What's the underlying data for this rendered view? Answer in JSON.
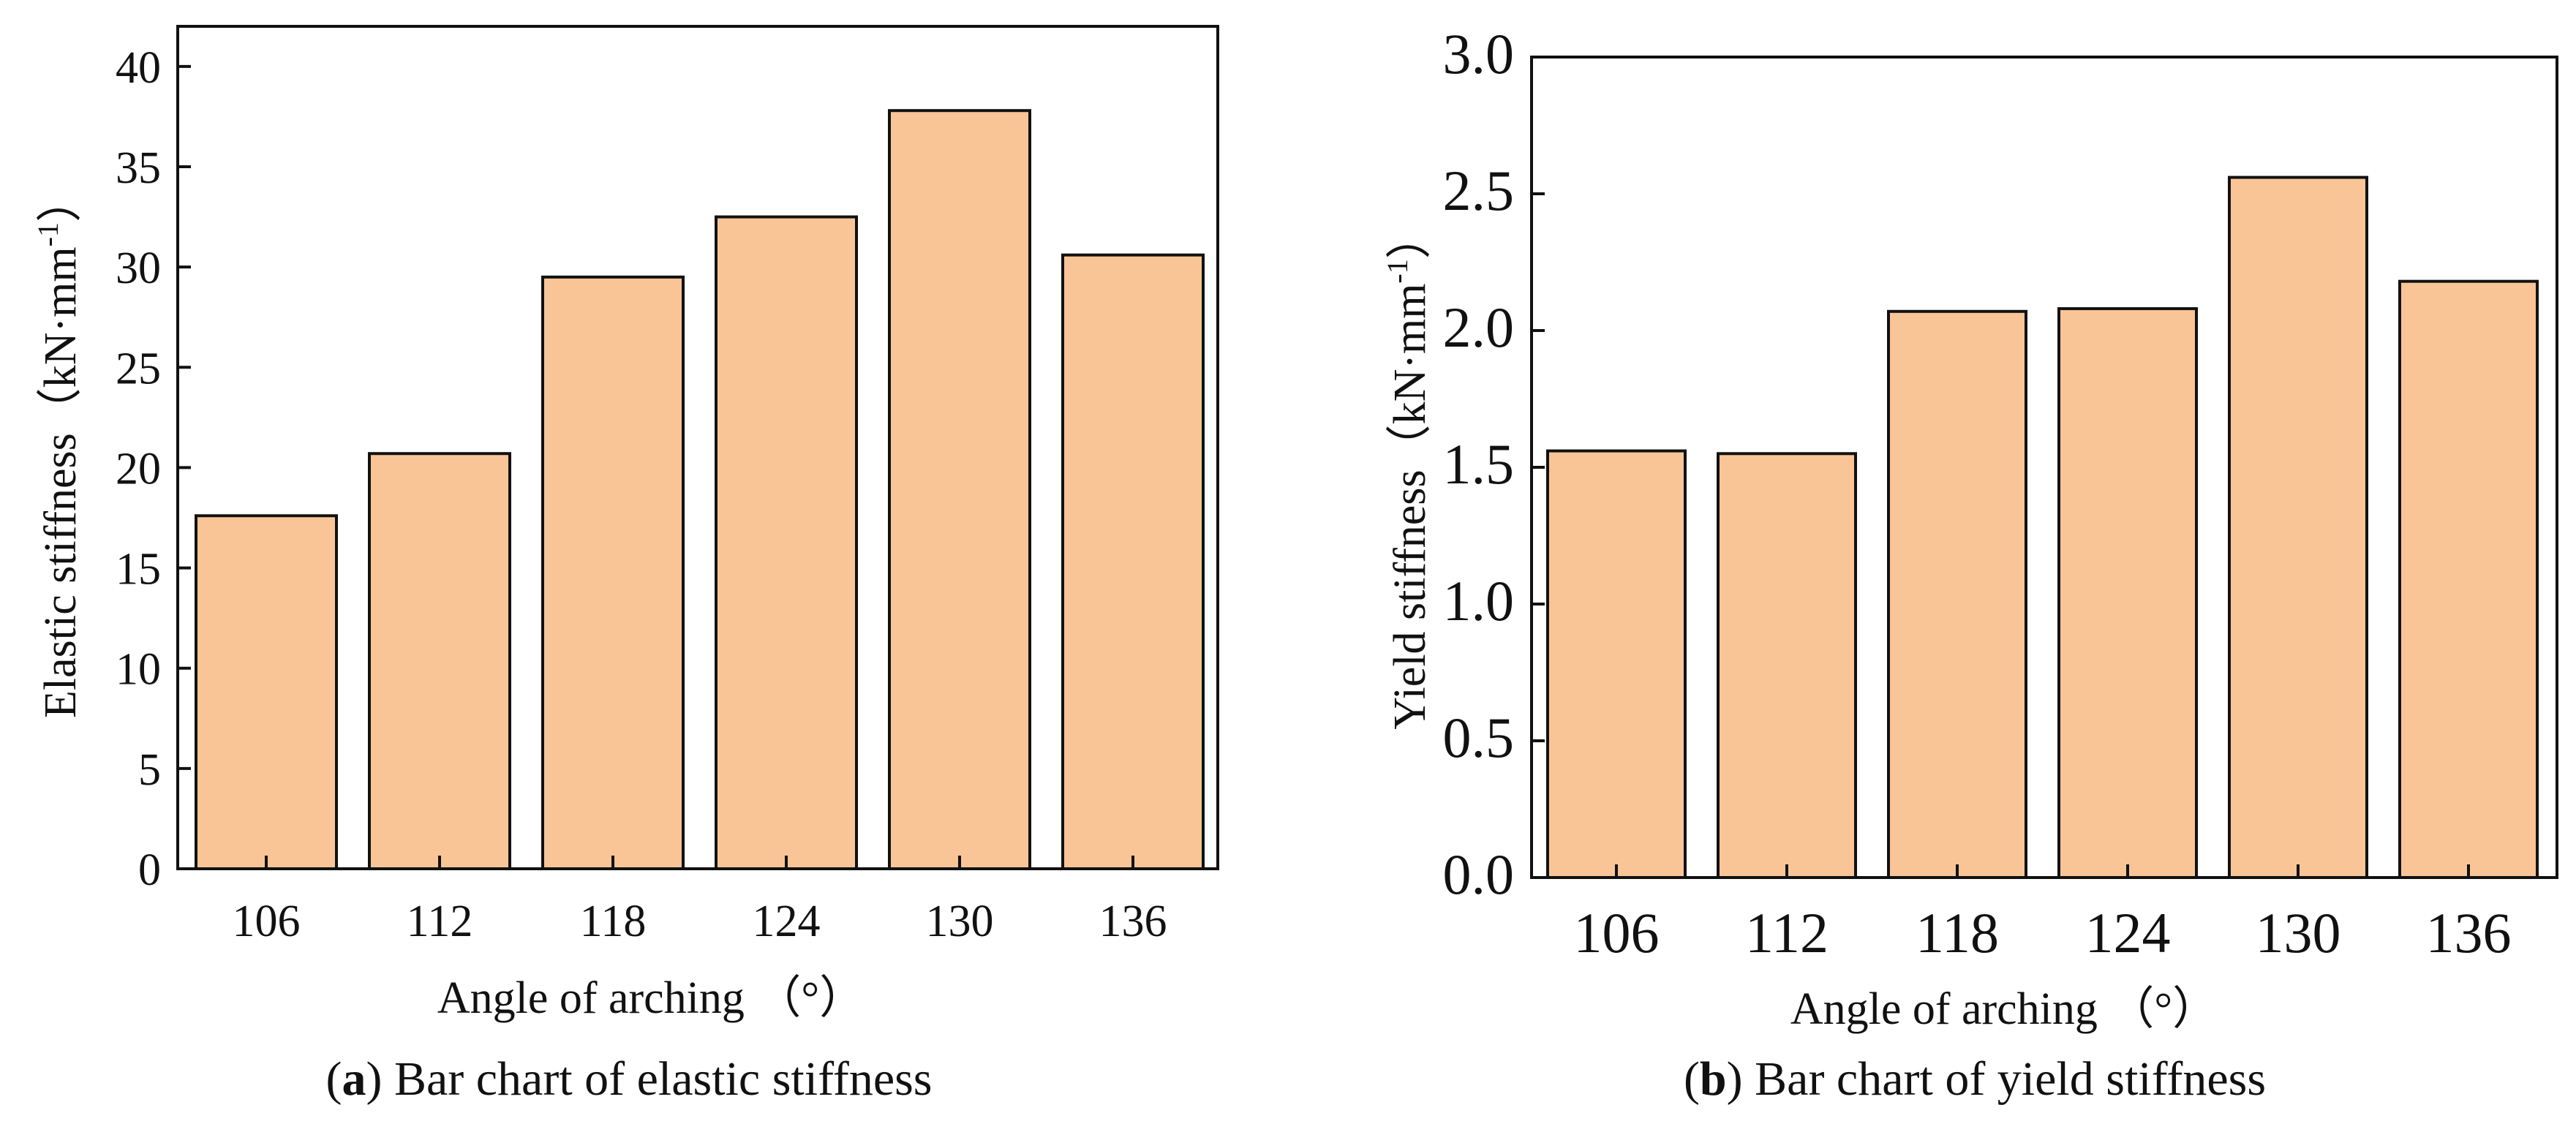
{
  "colors": {
    "bar_fill": "#F9C597",
    "bar_stroke": "#111111",
    "axis": "#111111"
  },
  "chart_data": [
    {
      "type": "bar",
      "categories": [
        "106",
        "112",
        "118",
        "124",
        "130",
        "136"
      ],
      "values": [
        17.6,
        20.7,
        29.5,
        32.5,
        37.8,
        30.6
      ],
      "ylim": [
        0,
        42
      ],
      "yticks": [
        "0",
        "5",
        "10",
        "15",
        "20",
        "25",
        "30",
        "35",
        "40"
      ],
      "ylabel": "Elastic stiffness（kN·mm",
      "ylabel_sup": "-1",
      "ylabel_close": "）",
      "xlabel": "Angle of arching （°）",
      "caption_letter": "a",
      "caption_open": "(",
      "caption_close": ")",
      "caption_text": " Bar chart of elastic stiffness"
    },
    {
      "type": "bar",
      "categories": [
        "106",
        "112",
        "118",
        "124",
        "130",
        "136"
      ],
      "values": [
        1.56,
        1.55,
        2.07,
        2.08,
        2.56,
        2.18
      ],
      "ylim": [
        0,
        3.0
      ],
      "yticks": [
        "0.0",
        "0.5",
        "1.0",
        "1.5",
        "2.0",
        "2.5",
        "3.0"
      ],
      "ylabel": "Yield stiffness（kN·mm",
      "ylabel_sup": "-1",
      "ylabel_close": "）",
      "xlabel": "Angle of arching （°）",
      "caption_letter": "b",
      "caption_open": "(",
      "caption_close": ")",
      "caption_text": " Bar chart of yield stiffness"
    }
  ]
}
